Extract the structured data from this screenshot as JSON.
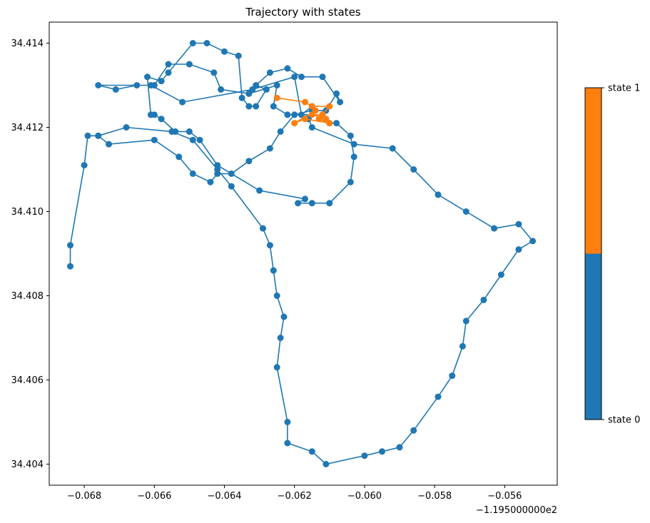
{
  "chart_data": {
    "type": "scatter",
    "title": "Trajectory with states",
    "xlabel": "",
    "ylabel": "",
    "x_offset_label": "−1.195000000e2",
    "xlim": [
      -0.069,
      -0.0545
    ],
    "ylim": [
      34.4035,
      34.4145
    ],
    "x_ticks": [
      -0.068,
      -0.066,
      -0.064,
      -0.062,
      -0.06,
      -0.058,
      -0.056
    ],
    "x_tick_labels": [
      "−0.068",
      "−0.066",
      "−0.064",
      "−0.062",
      "−0.060",
      "−0.058",
      "−0.056"
    ],
    "y_ticks": [
      34.404,
      34.406,
      34.408,
      34.41,
      34.412,
      34.414
    ],
    "y_tick_labels": [
      "34.404",
      "34.406",
      "34.408",
      "34.410",
      "34.412",
      "34.414"
    ],
    "grid": false,
    "colorbar": {
      "labels": [
        "state 0",
        "state 1"
      ],
      "colors": [
        "#1f77b4",
        "#ff7f0e"
      ]
    },
    "series": [
      {
        "name": "state 0",
        "color": "#1f77b4",
        "points": [
          [
            -0.0684,
            34.4087
          ],
          [
            -0.0684,
            34.4092
          ],
          [
            -0.068,
            34.4111
          ],
          [
            -0.0679,
            34.4118
          ],
          [
            -0.0676,
            34.4118
          ],
          [
            -0.0673,
            34.4116
          ],
          [
            -0.066,
            34.4117
          ],
          [
            -0.0653,
            34.4113
          ],
          [
            -0.0649,
            34.4109
          ],
          [
            -0.0644,
            34.4107
          ],
          [
            -0.0642,
            34.4109
          ],
          [
            -0.0638,
            34.4109
          ],
          [
            -0.0633,
            34.4112
          ],
          [
            -0.0627,
            34.4115
          ],
          [
            -0.0624,
            34.4119
          ],
          [
            -0.062,
            34.4123
          ],
          [
            -0.0615,
            34.4124
          ],
          [
            -0.0611,
            34.4124
          ],
          [
            -0.0608,
            34.4128
          ],
          [
            -0.0607,
            34.4126
          ],
          [
            -0.0612,
            34.4132
          ],
          [
            -0.0618,
            34.4132
          ],
          [
            -0.0622,
            34.4134
          ],
          [
            -0.0627,
            34.4133
          ],
          [
            -0.0631,
            34.413
          ],
          [
            -0.0628,
            34.4129
          ],
          [
            -0.0631,
            34.4125
          ],
          [
            -0.0633,
            34.4125
          ],
          [
            -0.0635,
            34.4127
          ],
          [
            -0.0636,
            34.4137
          ],
          [
            -0.064,
            34.4138
          ],
          [
            -0.0645,
            34.414
          ],
          [
            -0.0649,
            34.414
          ],
          [
            -0.0656,
            34.4133
          ],
          [
            -0.0658,
            34.4131
          ],
          [
            -0.0662,
            34.4132
          ],
          [
            -0.0661,
            34.4123
          ],
          [
            -0.066,
            34.4123
          ],
          [
            -0.0658,
            34.4122
          ],
          [
            -0.0654,
            34.4119
          ],
          [
            -0.065,
            34.4119
          ],
          [
            -0.0647,
            34.4117
          ],
          [
            -0.0642,
            34.4111
          ],
          [
            -0.063,
            34.4105
          ],
          [
            -0.0617,
            34.4103
          ],
          [
            -0.0619,
            34.4102
          ],
          [
            -0.0615,
            34.4102
          ],
          [
            -0.061,
            34.4102
          ],
          [
            -0.0604,
            34.4107
          ],
          [
            -0.0603,
            34.4113
          ],
          [
            -0.0604,
            34.4118
          ],
          [
            -0.0608,
            34.4121
          ],
          [
            -0.061,
            34.4121
          ],
          [
            -0.0612,
            34.4123
          ],
          [
            -0.0622,
            34.4123
          ],
          [
            -0.0626,
            34.4125
          ],
          [
            -0.0625,
            34.413
          ],
          [
            -0.0633,
            34.4128
          ],
          [
            -0.0641,
            34.4129
          ],
          [
            -0.0643,
            34.4133
          ],
          [
            -0.065,
            34.4135
          ],
          [
            -0.0656,
            34.4135
          ],
          [
            -0.066,
            34.413
          ],
          [
            -0.0665,
            34.413
          ],
          [
            -0.0671,
            34.4129
          ],
          [
            -0.0676,
            34.413
          ],
          [
            -0.0661,
            34.413
          ],
          [
            -0.0652,
            34.4126
          ],
          [
            -0.0632,
            34.4129
          ],
          [
            -0.062,
            34.4132
          ],
          [
            -0.0618,
            34.4123
          ],
          [
            -0.0615,
            34.4125
          ],
          [
            -0.0616,
            34.4122
          ],
          [
            -0.0615,
            34.412
          ],
          [
            -0.0603,
            34.4116
          ],
          [
            -0.0592,
            34.4115
          ],
          [
            -0.0586,
            34.411
          ],
          [
            -0.0579,
            34.4104
          ],
          [
            -0.0571,
            34.41
          ],
          [
            -0.0563,
            34.4096
          ],
          [
            -0.0556,
            34.4097
          ],
          [
            -0.0552,
            34.4093
          ],
          [
            -0.0556,
            34.4091
          ],
          [
            -0.0561,
            34.4085
          ],
          [
            -0.0566,
            34.4079
          ],
          [
            -0.0571,
            34.4074
          ],
          [
            -0.0572,
            34.4068
          ],
          [
            -0.0575,
            34.4061
          ],
          [
            -0.0579,
            34.4056
          ],
          [
            -0.0586,
            34.4048
          ],
          [
            -0.059,
            34.4044
          ],
          [
            -0.0595,
            34.4043
          ],
          [
            -0.06,
            34.4042
          ],
          [
            -0.0611,
            34.404
          ],
          [
            -0.0615,
            34.4043
          ],
          [
            -0.0622,
            34.4045
          ],
          [
            -0.0622,
            34.405
          ],
          [
            -0.0625,
            34.4063
          ],
          [
            -0.0624,
            34.407
          ],
          [
            -0.0623,
            34.4075
          ],
          [
            -0.0625,
            34.408
          ],
          [
            -0.0626,
            34.4086
          ],
          [
            -0.0627,
            34.4092
          ],
          [
            -0.0629,
            34.4096
          ],
          [
            -0.0638,
            34.4106
          ],
          [
            -0.0642,
            34.411
          ],
          [
            -0.0649,
            34.4117
          ],
          [
            -0.0655,
            34.4119
          ],
          [
            -0.0668,
            34.412
          ],
          [
            -0.0676,
            34.4118
          ]
        ]
      },
      {
        "name": "state 1",
        "color": "#ff7f0e",
        "points": [
          [
            -0.0625,
            34.4127
          ],
          [
            -0.0617,
            34.4126
          ],
          [
            -0.0615,
            34.4125
          ],
          [
            -0.061,
            34.4125
          ],
          [
            -0.0612,
            34.4123
          ],
          [
            -0.0615,
            34.4123
          ],
          [
            -0.0611,
            34.4122
          ],
          [
            -0.0613,
            34.4122
          ],
          [
            -0.061,
            34.4121
          ],
          [
            -0.0617,
            34.4122
          ],
          [
            -0.062,
            34.4121
          ],
          [
            -0.0614,
            34.4124
          ]
        ]
      }
    ]
  }
}
